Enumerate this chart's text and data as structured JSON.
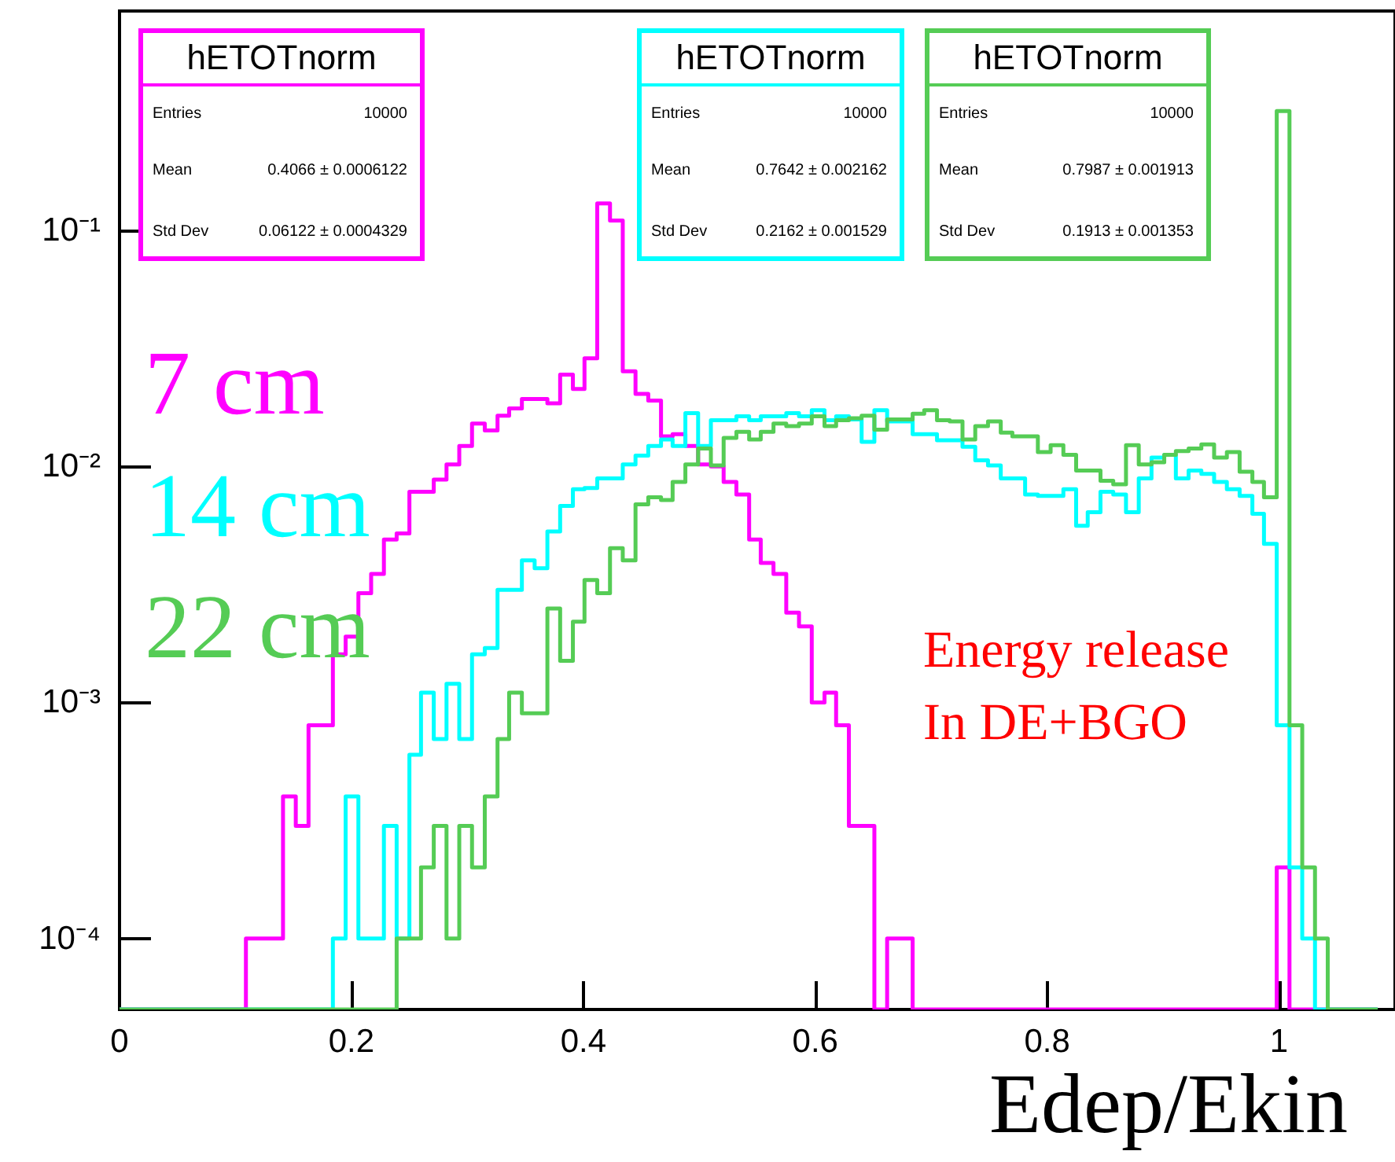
{
  "chart_data": {
    "type": "histogram",
    "xlabel": "Edep/Ekin",
    "bins": [
      0,
      0.011,
      0.022,
      0.033,
      0.043,
      0.054,
      0.065,
      0.076,
      0.087,
      0.098,
      0.109,
      0.119,
      0.13,
      0.141,
      0.152,
      0.163,
      0.174,
      0.184,
      0.195,
      0.206,
      0.217,
      0.228,
      0.239,
      0.25,
      0.26,
      0.271,
      0.282,
      0.293,
      0.304,
      0.315,
      0.326,
      0.336,
      0.347,
      0.358,
      0.369,
      0.38,
      0.391,
      0.401,
      0.412,
      0.423,
      0.434,
      0.445,
      0.456,
      0.467,
      0.477,
      0.488,
      0.499,
      0.51,
      0.521,
      0.532,
      0.543,
      0.553,
      0.564,
      0.575,
      0.586,
      0.597,
      0.608,
      0.618,
      0.629,
      0.64,
      0.651,
      0.662,
      0.673,
      0.684,
      0.694,
      0.705,
      0.716,
      0.727,
      0.738,
      0.749,
      0.76,
      0.77,
      0.781,
      0.792,
      0.803,
      0.814,
      0.825,
      0.835,
      0.846,
      0.857,
      0.868,
      0.879,
      0.89,
      0.901,
      0.911,
      0.922,
      0.933,
      0.944,
      0.955,
      0.966,
      0.977,
      0.987,
      0.998,
      1.009,
      1.02,
      1.031,
      1.042,
      1.052,
      1.063,
      1.074,
      1.085
    ],
    "series": [
      {
        "name": "7 cm",
        "color": "#ff00ff",
        "values": [
          null,
          null,
          null,
          null,
          null,
          null,
          null,
          null,
          null,
          null,
          0.0001,
          0.0001,
          0.0001,
          0.0004,
          0.0003,
          0.0008,
          0.0008,
          0.0016,
          0.0019,
          0.0029,
          0.0035,
          0.0049,
          0.0052,
          0.0078,
          0.0078,
          0.0088,
          0.0102,
          0.0122,
          0.0152,
          0.0142,
          0.0164,
          0.0176,
          0.0193,
          0.0193,
          0.0185,
          0.0245,
          0.0213,
          0.0287,
          0.13,
          0.11,
          0.0253,
          0.0203,
          0.019,
          0.0134,
          0.0137,
          0.0122,
          0.0102,
          0.01,
          0.0086,
          0.0076,
          0.0049,
          0.0039,
          0.0035,
          0.0024,
          0.0021,
          0.001,
          0.0011,
          0.0008,
          0.0003,
          0.0003,
          null,
          0.0001,
          0.0001,
          null,
          null,
          null,
          null,
          null,
          null,
          null,
          null,
          null,
          null,
          null,
          null,
          null,
          null,
          null,
          null,
          null,
          null,
          null,
          null,
          null,
          null,
          null,
          null,
          null,
          null,
          null,
          null,
          null,
          0.0002,
          null,
          null,
          null,
          null,
          null,
          null,
          null
        ]
      },
      {
        "name": "14 cm",
        "color": "#00ffff",
        "values": [
          null,
          null,
          null,
          null,
          null,
          null,
          null,
          null,
          null,
          null,
          null,
          null,
          null,
          null,
          null,
          null,
          null,
          0.0001,
          0.0004,
          0.0001,
          0.0001,
          0.0003,
          0.0001,
          0.0006,
          0.0011,
          0.0007,
          0.0012,
          0.0007,
          0.0016,
          0.0017,
          0.003,
          0.003,
          0.004,
          0.0037,
          0.0053,
          0.0068,
          0.008,
          0.0081,
          0.0089,
          0.0089,
          0.0102,
          0.0111,
          0.0122,
          0.013,
          0.0122,
          0.0168,
          0.0122,
          0.0157,
          0.0157,
          0.0163,
          0.0157,
          0.0163,
          0.0163,
          0.0168,
          0.0163,
          0.0173,
          0.0157,
          0.0163,
          0.0158,
          0.0127,
          0.0173,
          0.0155,
          0.0155,
          0.0137,
          0.0137,
          0.0129,
          0.0129,
          0.0121,
          0.0106,
          0.0101,
          0.0089,
          0.0089,
          0.0076,
          0.0075,
          0.0075,
          0.008,
          0.0056,
          0.0064,
          0.0078,
          0.0076,
          0.0064,
          0.0089,
          0.0109,
          0.0112,
          0.0089,
          0.0096,
          0.0093,
          0.0086,
          0.008,
          0.0075,
          0.0063,
          0.0047,
          0.0008,
          0.0002,
          0.0001,
          null,
          null,
          null,
          null,
          null
        ]
      },
      {
        "name": "22 cm",
        "color": "#55cc55",
        "values": [
          null,
          null,
          null,
          null,
          null,
          null,
          null,
          null,
          null,
          null,
          null,
          null,
          null,
          null,
          null,
          null,
          null,
          null,
          null,
          null,
          null,
          null,
          0.0001,
          0.0001,
          0.0002,
          0.0003,
          0.0001,
          0.0003,
          0.0002,
          0.0004,
          0.0007,
          0.0011,
          0.0009,
          0.0009,
          0.0025,
          0.0015,
          0.0022,
          0.0033,
          0.0029,
          0.0045,
          0.004,
          0.0069,
          0.0074,
          0.0072,
          0.0086,
          0.0102,
          0.0119,
          0.0101,
          0.0132,
          0.014,
          0.013,
          0.014,
          0.0152,
          0.0148,
          0.0152,
          0.0163,
          0.0148,
          0.0157,
          0.016,
          0.0164,
          0.0143,
          0.0158,
          0.0158,
          0.0167,
          0.0173,
          0.0157,
          0.0155,
          0.013,
          0.0148,
          0.0155,
          0.0139,
          0.0134,
          0.0134,
          0.0115,
          0.0123,
          0.0112,
          0.0096,
          0.0096,
          0.0087,
          0.0084,
          0.0123,
          0.0102,
          0.0104,
          0.0112,
          0.0116,
          0.0119,
          0.0124,
          0.0109,
          0.0115,
          0.0095,
          0.0086,
          0.0074,
          0.32,
          0.0008,
          0.0002,
          0.0001,
          null,
          null,
          null,
          null
        ]
      }
    ],
    "xlim": [
      0,
      1.1
    ],
    "xticks": [
      0,
      0.2,
      0.4,
      0.6,
      0.8,
      1
    ],
    "log": true,
    "ylim": [
      5e-05,
      0.85
    ],
    "yticks": [
      {
        "value": 0.0001,
        "label": "10⁻⁴"
      },
      {
        "value": 0.001,
        "label": "10⁻³"
      },
      {
        "value": 0.01,
        "label": "10⁻²"
      },
      {
        "value": 0.1,
        "label": "10⁻¹"
      }
    ],
    "annotations": [
      "hETOTnorm",
      "Entries",
      "10000",
      "Mean",
      "0.4066 ± 0.0006122",
      "Std Dev",
      "0.06122 ± 0.0004329",
      "hETOTnorm",
      "Entries",
      "10000",
      "Mean",
      "0.7642 ± 0.002162",
      "Std Dev",
      "0.2162 ± 0.001529",
      "hETOTnorm",
      "Entries",
      "10000",
      "Mean",
      "0.7987 ± 0.001913",
      "Std Dev",
      "0.1913 ± 0.001353",
      "Energy release",
      "In DE+BGO"
    ]
  }
}
